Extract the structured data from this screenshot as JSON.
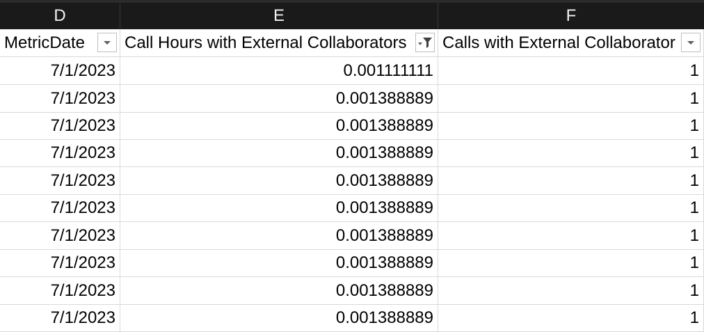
{
  "columns": [
    "D",
    "E",
    "F"
  ],
  "headers": {
    "D": "MetricDate",
    "E": "Call Hours with External Collaborators",
    "F": "Calls with External Collaborators"
  },
  "filters": {
    "D": "dropdown-arrow-icon",
    "E": "filter-active-icon",
    "F": "dropdown-arrow-icon"
  },
  "rows": [
    {
      "date": "7/1/2023",
      "hours": "0.001111111",
      "calls": "1"
    },
    {
      "date": "7/1/2023",
      "hours": "0.001388889",
      "calls": "1"
    },
    {
      "date": "7/1/2023",
      "hours": "0.001388889",
      "calls": "1"
    },
    {
      "date": "7/1/2023",
      "hours": "0.001388889",
      "calls": "1"
    },
    {
      "date": "7/1/2023",
      "hours": "0.001388889",
      "calls": "1"
    },
    {
      "date": "7/1/2023",
      "hours": "0.001388889",
      "calls": "1"
    },
    {
      "date": "7/1/2023",
      "hours": "0.001388889",
      "calls": "1"
    },
    {
      "date": "7/1/2023",
      "hours": "0.001388889",
      "calls": "1"
    },
    {
      "date": "7/1/2023",
      "hours": "0.001388889",
      "calls": "1"
    },
    {
      "date": "7/1/2023",
      "hours": "0.001388889",
      "calls": "1"
    }
  ]
}
